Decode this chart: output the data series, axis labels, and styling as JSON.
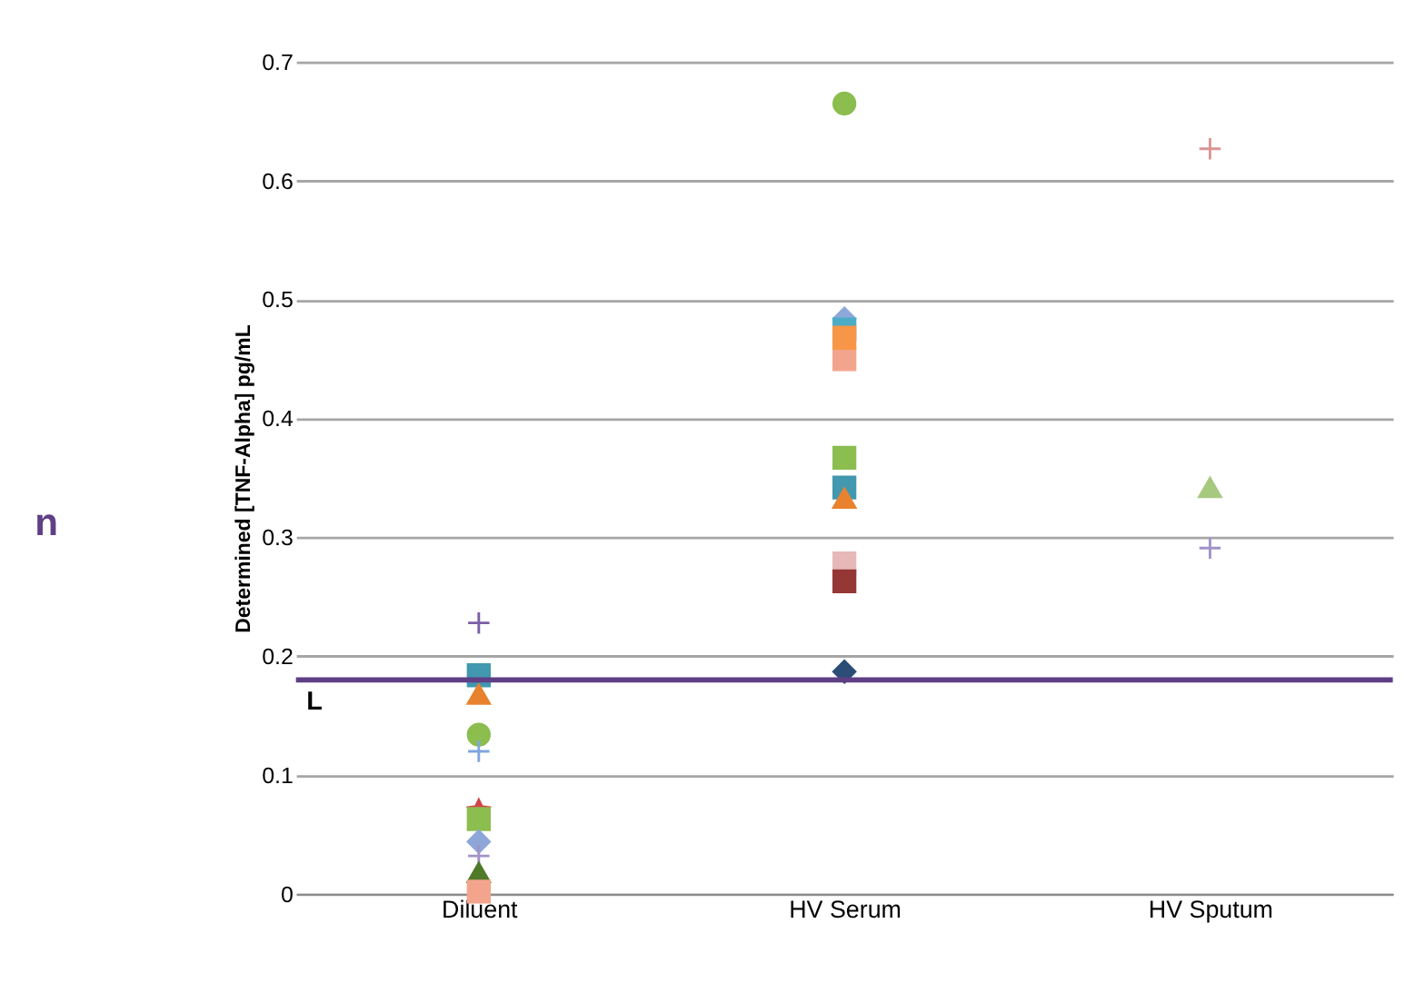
{
  "chart_data": {
    "type": "scatter",
    "ylabel": "Determined [TNF-Alpha]  pg/mL",
    "categories": [
      "Diluent",
      "HV Serum",
      "HV Sputum"
    ],
    "ylim": [
      0,
      0.7
    ],
    "yticks": [
      0,
      0.1,
      0.2,
      0.3,
      0.4,
      0.5,
      0.6,
      0.7
    ],
    "grid": "y",
    "series": [
      {
        "color": "#7b5ea7",
        "marker": "cross",
        "x": [
          "Diluent"
        ],
        "values": [
          0.228
        ]
      },
      {
        "color": "#4198af",
        "marker": "square",
        "x": [
          "Diluent",
          "HV Serum"
        ],
        "values": [
          0.184,
          0.342
        ]
      },
      {
        "color": "#e8822f",
        "marker": "triangle",
        "x": [
          "Diluent",
          "HV Serum"
        ],
        "values": [
          0.168,
          0.333
        ]
      },
      {
        "color": "#8cbd4f",
        "marker": "circle",
        "x": [
          "Diluent",
          "HV Serum"
        ],
        "values": [
          0.134,
          0.665
        ]
      },
      {
        "color": "#7fa6e0",
        "marker": "cross",
        "x": [
          "Diluent"
        ],
        "values": [
          0.12
        ]
      },
      {
        "color": "#d0454a",
        "marker": "star",
        "x": [
          "Diluent"
        ],
        "values": [
          0.07
        ]
      },
      {
        "color": "#8cbd4f",
        "marker": "square",
        "x": [
          "Diluent",
          "HV Serum"
        ],
        "values": [
          0.063,
          0.367
        ]
      },
      {
        "color": "#8ea7d9",
        "marker": "diamond",
        "x": [
          "Diluent",
          "HV Serum"
        ],
        "values": [
          0.044,
          0.484
        ]
      },
      {
        "color": "#a392c9",
        "marker": "cross",
        "x": [
          "Diluent",
          "HV Sputum"
        ],
        "values": [
          0.032,
          0.291
        ]
      },
      {
        "color": "#4f7a28",
        "marker": "triangle",
        "x": [
          "Diluent"
        ],
        "values": [
          0.018
        ]
      },
      {
        "color": "#f2a58c",
        "marker": "square",
        "x": [
          "Diluent",
          "HV Serum"
        ],
        "values": [
          0.002,
          0.45
        ]
      },
      {
        "color": "#4bacc6",
        "marker": "square",
        "x": [
          "HV Serum"
        ],
        "values": [
          0.475
        ]
      },
      {
        "color": "#f79646",
        "marker": "square",
        "x": [
          "HV Serum"
        ],
        "values": [
          0.468
        ]
      },
      {
        "color": "#e6b9b8",
        "marker": "square",
        "x": [
          "HV Serum"
        ],
        "values": [
          0.278
        ]
      },
      {
        "color": "#953735",
        "marker": "square",
        "x": [
          "HV Serum"
        ],
        "values": [
          0.263
        ]
      },
      {
        "color": "#2c4d75",
        "marker": "diamond",
        "x": [
          "HV Serum"
        ],
        "values": [
          0.187
        ]
      },
      {
        "color": "#d99694",
        "marker": "cross",
        "x": [
          "HV Sputum"
        ],
        "values": [
          0.627
        ]
      },
      {
        "color": "#a6c97f",
        "marker": "triangle",
        "x": [
          "HV Sputum"
        ],
        "values": [
          0.342
        ]
      }
    ],
    "ref_lines": [
      {
        "axis": "y",
        "value": 0.18,
        "label": "L",
        "color": "#5f3f86"
      }
    ],
    "annotations": [
      "n"
    ]
  }
}
